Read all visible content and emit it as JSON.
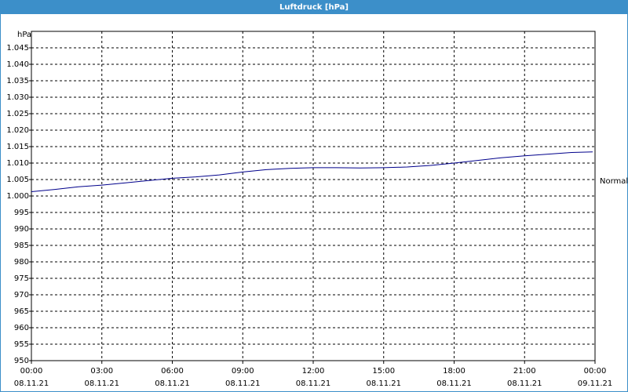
{
  "chart_data": {
    "type": "line",
    "title": "Luftdruck [hPa]",
    "y_unit": "hPa",
    "annotation": "Normal",
    "x": [
      0,
      1,
      2,
      3,
      4,
      5,
      6,
      7,
      8,
      9,
      10,
      11,
      12,
      13,
      14,
      15,
      16,
      17,
      18,
      19,
      20,
      21,
      22,
      23,
      23.9
    ],
    "series": [
      {
        "color": "#00008b",
        "values": [
          1001.3,
          1002.0,
          1002.8,
          1003.3,
          1004.0,
          1004.7,
          1005.4,
          1005.8,
          1006.4,
          1007.3,
          1008.0,
          1008.4,
          1008.6,
          1008.6,
          1008.5,
          1008.6,
          1008.8,
          1009.3,
          1010.0,
          1010.8,
          1011.6,
          1012.2,
          1012.7,
          1013.2,
          1013.4
        ]
      }
    ],
    "xlim": [
      0,
      24
    ],
    "xticks": [
      {
        "value": 0,
        "label": "00:00"
      },
      {
        "value": 3,
        "label": "03:00"
      },
      {
        "value": 6,
        "label": "06:00"
      },
      {
        "value": 9,
        "label": "09:00"
      },
      {
        "value": 12,
        "label": "12:00"
      },
      {
        "value": 15,
        "label": "15:00"
      },
      {
        "value": 18,
        "label": "18:00"
      },
      {
        "value": 21,
        "label": "21:00"
      },
      {
        "value": 24,
        "label": "00:00"
      }
    ],
    "xtick_dates": [
      "08.11.21",
      "08.11.21",
      "08.11.21",
      "08.11.21",
      "08.11.21",
      "08.11.21",
      "08.11.21",
      "08.11.21",
      "09.11.21"
    ],
    "ylim": [
      950,
      1050
    ],
    "yticks": [
      950,
      955,
      960,
      965,
      970,
      975,
      980,
      985,
      990,
      995,
      {
        "value": 1000,
        "label": "1.000"
      },
      {
        "value": 1005,
        "label": "1.005"
      },
      {
        "value": 1010,
        "label": "1.010"
      },
      {
        "value": 1015,
        "label": "1.015"
      },
      {
        "value": 1020,
        "label": "1.020"
      },
      {
        "value": 1025,
        "label": "1.025"
      },
      {
        "value": 1030,
        "label": "1.030"
      },
      {
        "value": 1035,
        "label": "1.035"
      },
      {
        "value": 1040,
        "label": "1.040"
      },
      {
        "value": 1045,
        "label": "1.045"
      }
    ],
    "grid": true
  }
}
